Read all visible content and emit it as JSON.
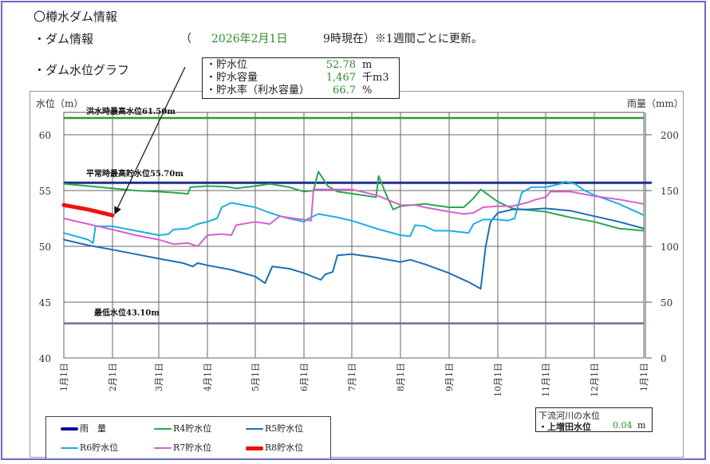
{
  "page": {
    "title": "〇樽水ダム情報",
    "dam_info_label": "・ダム情報",
    "open_paren": "（",
    "date": "2026年2月1日",
    "as_of": "9時現在）※1週間ごとに更新。",
    "graph_label": "・ダム水位グラフ"
  },
  "info_box": {
    "rows": [
      {
        "label": "・貯水位",
        "value": "52.78",
        "unit": "m"
      },
      {
        "label": "・貯水容量",
        "value": "1,467",
        "unit": "千m3"
      },
      {
        "label": "・貯水率（利水容量）",
        "value": "66.7",
        "unit": "%"
      }
    ]
  },
  "downstream": {
    "title": "下流河川の水位",
    "label": "・上増田水位",
    "value": "0.04",
    "unit": "m"
  },
  "chart_data": {
    "type": "line",
    "title": "ダム水位グラフ",
    "ylabel": "水位（m）",
    "y2label": "雨量（mm）",
    "ylim": [
      40,
      62
    ],
    "y2lim": [
      0,
      220
    ],
    "yticks": [
      40,
      45,
      50,
      55,
      60
    ],
    "y2ticks": [
      0,
      50,
      100,
      150,
      200
    ],
    "grid": true,
    "x_categories": [
      "1月1日",
      "2月1日",
      "3月1日",
      "4月1日",
      "5月1日",
      "6月1日",
      "7月1日",
      "8月1日",
      "9月1日",
      "10月1日",
      "11月1日",
      "12月1日",
      "1月1日"
    ],
    "reference_lines": [
      {
        "label": "洪水時最高水位61.50m",
        "value": 61.5,
        "color": "#2e9a2e"
      },
      {
        "label": "平常時最高貯水位55.70m",
        "value": 55.7,
        "color": "#1f2f8a"
      },
      {
        "label": "最低水位43.10m",
        "value": 43.1,
        "color": "#8060a8"
      }
    ],
    "legend": [
      {
        "name": "雨　量",
        "color": "#0a0aa0",
        "width": 4
      },
      {
        "name": "R4貯水位",
        "color": "#28a850",
        "width": 2
      },
      {
        "name": "R5貯水位",
        "color": "#1f6eb4",
        "width": 2
      },
      {
        "name": "R6貯水位",
        "color": "#1ab0e0",
        "width": 2
      },
      {
        "name": "R7貯水位",
        "color": "#d860d0",
        "width": 2
      },
      {
        "name": "R8貯水位",
        "color": "#ee1111",
        "width": 5
      }
    ],
    "series": [
      {
        "name": "R4貯水位",
        "color": "#28a850",
        "width": 2,
        "points": [
          [
            0,
            55.6
          ],
          [
            0.5,
            55.4
          ],
          [
            1,
            55.2
          ],
          [
            1.5,
            55.0
          ],
          [
            2,
            54.9
          ],
          [
            2.5,
            54.75
          ],
          [
            2.6,
            54.7
          ],
          [
            2.65,
            55.3
          ],
          [
            3,
            55.4
          ],
          [
            3.4,
            55.35
          ],
          [
            3.6,
            55.2
          ],
          [
            4,
            55.4
          ],
          [
            4.3,
            55.6
          ],
          [
            4.7,
            55.3
          ],
          [
            5,
            54.9
          ],
          [
            5.2,
            55.0
          ],
          [
            5.3,
            56.7
          ],
          [
            5.5,
            55.4
          ],
          [
            5.7,
            54.9
          ],
          [
            6.2,
            54.6
          ],
          [
            6.5,
            54.4
          ],
          [
            6.55,
            56.3
          ],
          [
            6.7,
            54.7
          ],
          [
            6.85,
            53.3
          ],
          [
            7,
            53.6
          ],
          [
            7.5,
            53.8
          ],
          [
            8,
            53.5
          ],
          [
            8.3,
            53.5
          ],
          [
            8.5,
            54.3
          ],
          [
            8.65,
            55.1
          ],
          [
            9,
            54.0
          ],
          [
            9.3,
            53.4
          ],
          [
            10,
            53.1
          ],
          [
            10.5,
            52.6
          ],
          [
            11,
            52.2
          ],
          [
            11.5,
            51.6
          ],
          [
            12,
            51.4
          ]
        ]
      },
      {
        "name": "R5貯水位",
        "color": "#1f6eb4",
        "width": 2,
        "points": [
          [
            0,
            50.6
          ],
          [
            0.5,
            50.1
          ],
          [
            1,
            49.7
          ],
          [
            1.5,
            49.3
          ],
          [
            2,
            48.9
          ],
          [
            2.5,
            48.5
          ],
          [
            2.7,
            48.2
          ],
          [
            2.8,
            48.5
          ],
          [
            3,
            48.3
          ],
          [
            3.5,
            47.9
          ],
          [
            4,
            47.3
          ],
          [
            4.2,
            46.7
          ],
          [
            4.35,
            48.2
          ],
          [
            4.7,
            48.0
          ],
          [
            5,
            47.6
          ],
          [
            5.35,
            47.0
          ],
          [
            5.45,
            47.5
          ],
          [
            5.6,
            47.7
          ],
          [
            5.7,
            49.2
          ],
          [
            6,
            49.3
          ],
          [
            6.5,
            49.0
          ],
          [
            7,
            48.6
          ],
          [
            7.2,
            48.8
          ],
          [
            7.5,
            48.4
          ],
          [
            8,
            47.6
          ],
          [
            8.4,
            46.8
          ],
          [
            8.65,
            46.2
          ],
          [
            8.75,
            50.0
          ],
          [
            8.85,
            52.2
          ],
          [
            9,
            53.0
          ],
          [
            9.3,
            53.3
          ],
          [
            9.6,
            53.3
          ],
          [
            10,
            53.4
          ],
          [
            10.5,
            53.2
          ],
          [
            11,
            52.7
          ],
          [
            11.5,
            52.2
          ],
          [
            12,
            51.6
          ]
        ]
      },
      {
        "name": "R6貯水位",
        "color": "#1ab0e0",
        "width": 2,
        "points": [
          [
            0,
            51.2
          ],
          [
            0.5,
            50.6
          ],
          [
            0.6,
            50.3
          ],
          [
            0.65,
            51.8
          ],
          [
            1,
            51.8
          ],
          [
            1.5,
            51.4
          ],
          [
            2,
            51.0
          ],
          [
            2.2,
            51.1
          ],
          [
            2.3,
            51.5
          ],
          [
            2.6,
            51.6
          ],
          [
            2.8,
            52.0
          ],
          [
            3,
            52.2
          ],
          [
            3.2,
            52.5
          ],
          [
            3.3,
            53.5
          ],
          [
            3.5,
            53.9
          ],
          [
            4,
            53.5
          ],
          [
            4.3,
            53.0
          ],
          [
            4.6,
            52.6
          ],
          [
            5,
            52.2
          ],
          [
            5.1,
            52.5
          ],
          [
            5.3,
            52.9
          ],
          [
            5.7,
            52.6
          ],
          [
            6,
            52.3
          ],
          [
            6.5,
            51.6
          ],
          [
            7,
            51.0
          ],
          [
            7.2,
            50.9
          ],
          [
            7.3,
            51.9
          ],
          [
            7.5,
            51.8
          ],
          [
            7.7,
            51.4
          ],
          [
            8,
            51.4
          ],
          [
            8.4,
            51.2
          ],
          [
            8.5,
            52.0
          ],
          [
            8.7,
            52.4
          ],
          [
            9,
            52.4
          ],
          [
            9.2,
            52.3
          ],
          [
            9.35,
            52.5
          ],
          [
            9.5,
            54.8
          ],
          [
            9.7,
            55.3
          ],
          [
            10,
            55.3
          ],
          [
            10.3,
            55.6
          ],
          [
            10.4,
            55.8
          ],
          [
            10.6,
            55.6
          ],
          [
            10.8,
            55.0
          ],
          [
            11,
            54.6
          ],
          [
            11.5,
            53.8
          ],
          [
            12,
            52.8
          ]
        ]
      },
      {
        "name": "R7貯水位",
        "color": "#d860d0",
        "width": 2,
        "points": [
          [
            0,
            52.5
          ],
          [
            0.5,
            52.0
          ],
          [
            1,
            51.5
          ],
          [
            1.5,
            51.0
          ],
          [
            2,
            50.6
          ],
          [
            2.3,
            50.2
          ],
          [
            2.6,
            50.3
          ],
          [
            2.8,
            50.0
          ],
          [
            3,
            51.0
          ],
          [
            3.3,
            51.1
          ],
          [
            3.5,
            51.0
          ],
          [
            3.6,
            51.9
          ],
          [
            4,
            52.2
          ],
          [
            4.3,
            52.0
          ],
          [
            4.5,
            52.7
          ],
          [
            4.8,
            52.5
          ],
          [
            5,
            52.4
          ],
          [
            5.15,
            52.3
          ],
          [
            5.2,
            55.1
          ],
          [
            5.5,
            55.1
          ],
          [
            6,
            55.1
          ],
          [
            6.5,
            54.6
          ],
          [
            7,
            53.7
          ],
          [
            7.3,
            53.7
          ],
          [
            7.5,
            53.5
          ],
          [
            8,
            53.1
          ],
          [
            8.3,
            52.9
          ],
          [
            8.5,
            53.0
          ],
          [
            8.7,
            53.5
          ],
          [
            9,
            53.6
          ],
          [
            9.3,
            53.6
          ],
          [
            9.6,
            53.9
          ],
          [
            9.8,
            54.2
          ],
          [
            10,
            54.4
          ],
          [
            10.1,
            54.9
          ],
          [
            10.5,
            54.9
          ],
          [
            11,
            54.5
          ],
          [
            11.5,
            54.2
          ],
          [
            12,
            53.8
          ]
        ]
      },
      {
        "name": "R8貯水位",
        "color": "#ee1111",
        "width": 5,
        "points": [
          [
            0,
            53.7
          ],
          [
            0.5,
            53.3
          ],
          [
            1,
            52.78
          ]
        ]
      }
    ]
  },
  "annotation": {
    "arrow_from": [
      232,
      84
    ],
    "arrow_to": [
      144,
      268
    ]
  }
}
